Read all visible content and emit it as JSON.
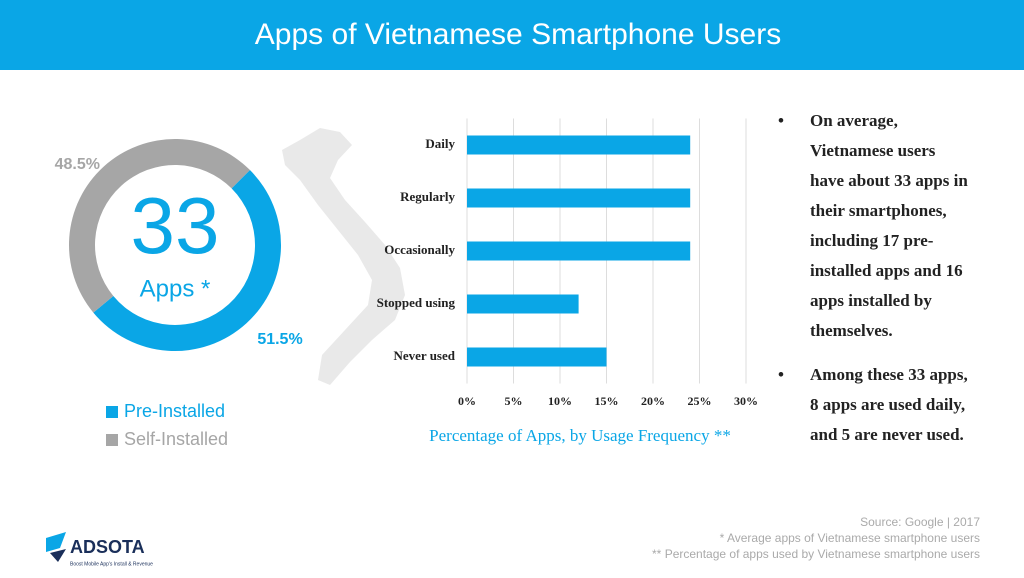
{
  "header": {
    "title": "Apps of Vietnamese Smartphone Users"
  },
  "chart_data": [
    {
      "type": "pie",
      "donut": true,
      "center_value": "33",
      "center_label": "Apps *",
      "categories": [
        "Pre-Installed",
        "Self-Installed"
      ],
      "values": [
        51.5,
        48.5
      ],
      "value_labels": [
        "51.5%",
        "48.5%"
      ],
      "colors": [
        "#0aa6e6",
        "#a6a6a6"
      ]
    },
    {
      "type": "bar",
      "orientation": "horizontal",
      "caption": "Percentage of Apps, by Usage Frequency **",
      "categories": [
        "Daily",
        "Regularly",
        "Occasionally",
        "Stopped using",
        "Never used"
      ],
      "values": [
        24,
        24,
        24,
        12,
        15
      ],
      "color": "#0aa6e6",
      "xlim": [
        0,
        30
      ],
      "xticks": [
        {
          "value": 0,
          "label": "0%"
        },
        {
          "value": 5,
          "label": "5%"
        },
        {
          "value": 10,
          "label": "10%"
        },
        {
          "value": 15,
          "label": "15%"
        },
        {
          "value": 20,
          "label": "20%"
        },
        {
          "value": 25,
          "label": "25%"
        },
        {
          "value": 30,
          "label": "30%"
        }
      ],
      "grid": true
    }
  ],
  "bullets": [
    "On average, Vietnamese users have about 33 apps in their smartphones, including 17 pre-installed apps and 16 apps installed by themselves.",
    "Among these 33 apps, 8 apps are used daily, and 5 are never used."
  ],
  "footer": {
    "source": "Source: Google | 2017",
    "notes": [
      "* Average apps of Vietnamese smartphone users",
      "** Percentage of apps used by Vietnamese smartphone users"
    ],
    "logo": "ADSOTA",
    "tagline": "Boost Mobile App's Install & Revenue"
  }
}
